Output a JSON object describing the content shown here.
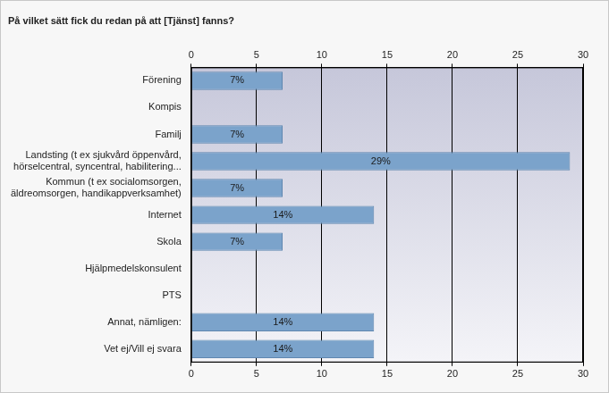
{
  "chart_data": {
    "type": "bar",
    "orientation": "horizontal",
    "title": "På vilket sätt fick du redan på att [Tjänst] fanns?",
    "categories": [
      "Förening",
      "Kompis",
      "Familj",
      "Landsting (t ex sjukvård öppenvård,\nhörselcentral, syncentral, habilitering...",
      "Kommun (t ex socialomsorgen,\näldreomsorgen, handikappverksamhet)",
      "Internet",
      "Skola",
      "Hjälpmedelskonsulent",
      "PTS",
      "Annat, nämligen:",
      "Vet ej/Vill ej svara"
    ],
    "values": [
      7,
      null,
      7,
      29,
      7,
      14,
      7,
      null,
      null,
      14,
      14
    ],
    "value_labels": [
      "7%",
      null,
      "7%",
      "29%",
      "7%",
      "14%",
      "7%",
      null,
      null,
      "14%",
      "14%"
    ],
    "color": "#7ba3cb",
    "xlim": [
      0,
      30
    ],
    "xticks": [
      0,
      5,
      10,
      15,
      20,
      25,
      30
    ],
    "grid": true,
    "data_labels": true
  }
}
